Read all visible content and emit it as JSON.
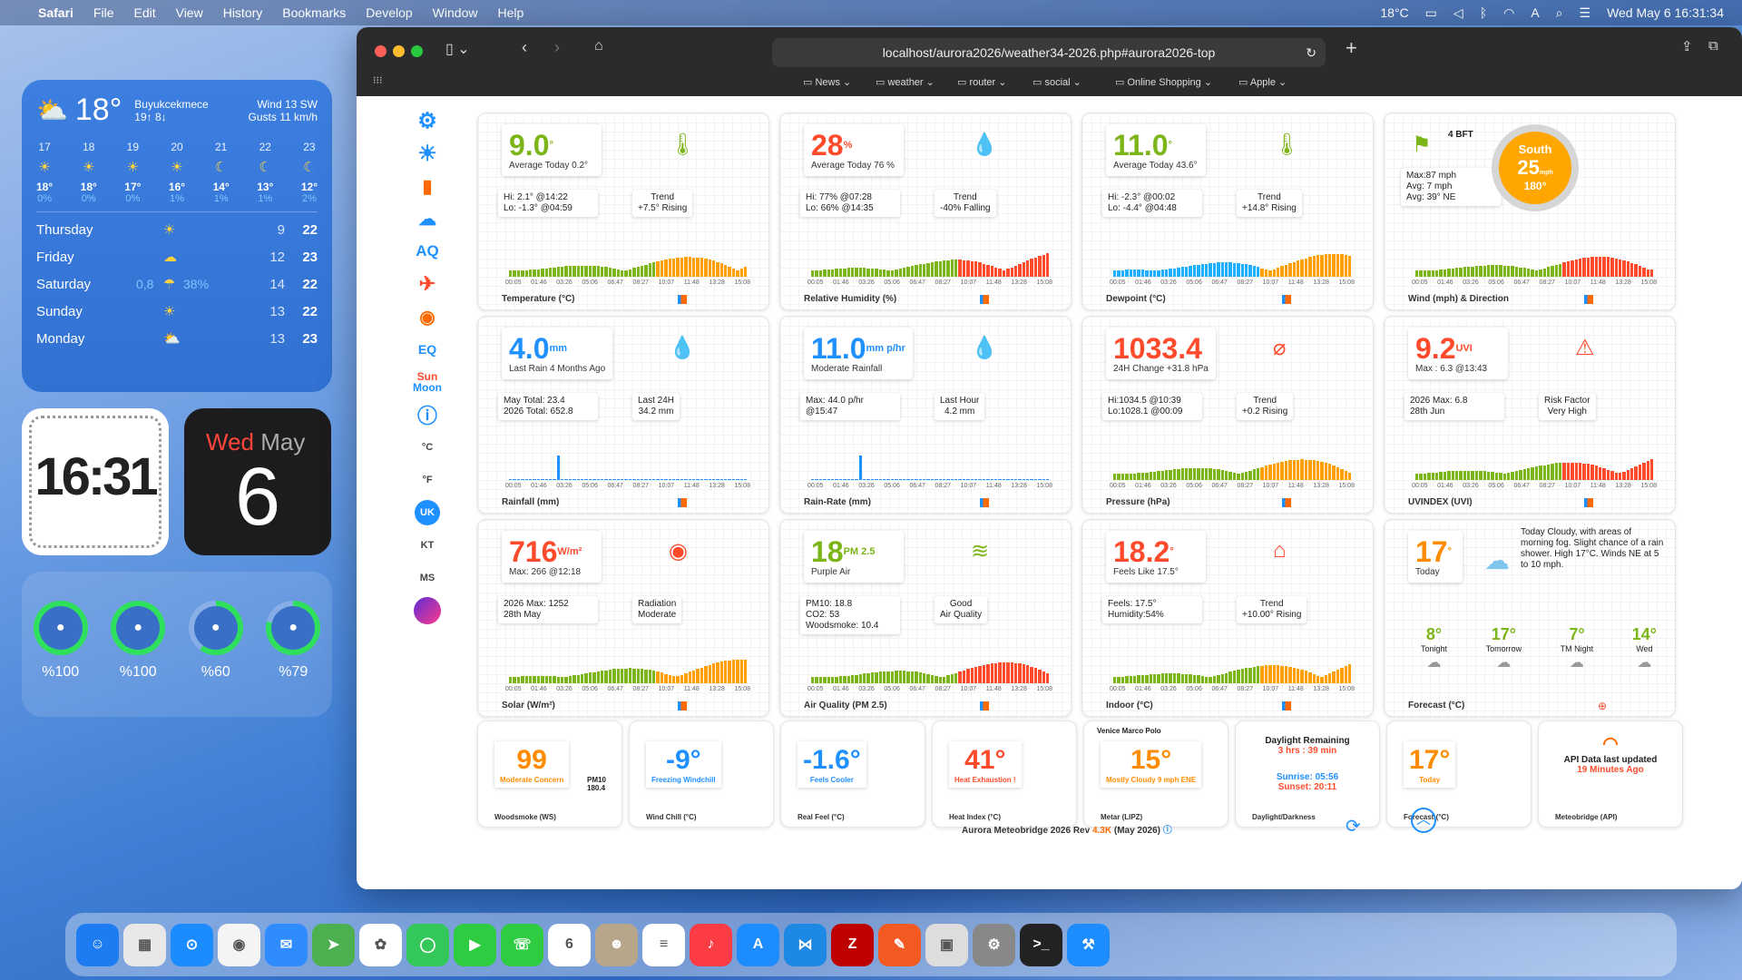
{
  "menubar": {
    "app": "Safari",
    "menus": [
      "File",
      "Edit",
      "View",
      "History",
      "Bookmarks",
      "Develop",
      "Window",
      "Help"
    ],
    "temp": "18°C",
    "datetime": "Wed May 6  16:31:34"
  },
  "weather_widget": {
    "temp": "18°",
    "location": "Buyukcekmece",
    "hilo": "19↑ 8↓",
    "wind": "Wind 13 SW",
    "gusts": "Gusts 11 km/h",
    "hours": [
      {
        "h": "17",
        "t": "18°",
        "p": "0%",
        "i": "☀"
      },
      {
        "h": "18",
        "t": "18°",
        "p": "0%",
        "i": "☀"
      },
      {
        "h": "19",
        "t": "17°",
        "p": "0%",
        "i": "☀"
      },
      {
        "h": "20",
        "t": "16°",
        "p": "1%",
        "i": "☀"
      },
      {
        "h": "21",
        "t": "14°",
        "p": "1%",
        "i": "☾"
      },
      {
        "h": "22",
        "t": "13°",
        "p": "1%",
        "i": "☾"
      },
      {
        "h": "23",
        "t": "12°",
        "p": "2%",
        "i": "☾"
      }
    ],
    "days": [
      {
        "d": "Thursday",
        "r": "",
        "p": "",
        "i": "☀",
        "lo": "9",
        "hi": "22"
      },
      {
        "d": "Friday",
        "r": "",
        "p": "",
        "i": "☁",
        "lo": "12",
        "hi": "23"
      },
      {
        "d": "Saturday",
        "r": "0,8",
        "p": "38%",
        "i": "☂",
        "lo": "14",
        "hi": "22"
      },
      {
        "d": "Sunday",
        "r": "",
        "p": "",
        "i": "☀",
        "lo": "13",
        "hi": "22"
      },
      {
        "d": "Monday",
        "r": "",
        "p": "",
        "i": "⛅",
        "lo": "13",
        "hi": "23"
      }
    ]
  },
  "clock_widget": {
    "time": "16:31"
  },
  "calendar_widget": {
    "dow": "Wed",
    "month": "May",
    "day": "6"
  },
  "battery_widget": {
    "items": [
      {
        "name": "airpods-icon",
        "pct": "%100",
        "level": 1.0
      },
      {
        "name": "case-icon",
        "pct": "%100",
        "level": 1.0
      },
      {
        "name": "keyboard-icon",
        "pct": "%60",
        "level": 0.6
      },
      {
        "name": "mouse-icon",
        "pct": "%79",
        "level": 0.79
      }
    ]
  },
  "browser": {
    "url": "localhost/aurora2026/weather34-2026.php#aurora2026-top",
    "bookmarks": [
      "News",
      "weather",
      "router",
      "social",
      "Online Shopping",
      "Apple"
    ]
  },
  "sidebar": {
    "aq": "AQ",
    "eq": "EQ",
    "sun": "Sun",
    "moon": "Moon",
    "c": "°C",
    "f": "°F",
    "uk": "UK",
    "kt": "KT",
    "ms": "MS"
  },
  "cards": [
    {
      "val": "9.0",
      "unit": "°",
      "sub": "Average Today 0.2°",
      "l1": "Hi: 2.1° @14:22",
      "l2": "Lo: -1.3° @04:59",
      "r1": "Trend",
      "r2": "+7.5° Rising",
      "title": "Temperature (°C)",
      "color": "#7cb518"
    },
    {
      "val": "28",
      "unit": "%",
      "sub": "Average Today 76 %",
      "l1": "Hi: 77% @07:28",
      "l2": "Lo: 66% @14:35",
      "r1": "Trend",
      "r2": "-40% Falling",
      "title": "Relative Humidity (%)",
      "color": "#ff4b2b"
    },
    {
      "val": "11.0",
      "unit": "°",
      "sub": "Average Today 43.6°",
      "l1": "Hi: -2.3° @00:02",
      "l2": "Lo: -4.4° @04:48",
      "r1": "Trend",
      "r2": "+14.8° Rising",
      "title": "Dewpoint (°C)",
      "color": "#7cb518"
    },
    {
      "val": "25",
      "unit": "mph",
      "sub": "",
      "l1": "Max:87 mph",
      "l2": "Avg: 7 mph",
      "l3": "Avg: 39° NE",
      "r1": "South",
      "r2": "180°",
      "title": "Wind (mph) & Direction",
      "color": "#7cb518",
      "bft": "4 BFT"
    },
    {
      "val": "4.0",
      "unit": "mm",
      "sub": "Last Rain 4 Months Ago",
      "l1": "May Total: 23.4",
      "l2": "2026 Total: 652.8",
      "r1": "Last 24H",
      "r2": "34.2 mm",
      "title": "Rainfall (mm)",
      "color": "#1e90ff"
    },
    {
      "val": "11.0",
      "unit": "mm p/hr",
      "sub": "Moderate Rainfall",
      "l1": "Max: 44.0 p/hr",
      "l2": "@15:47",
      "r1": "Last Hour",
      "r2": "4.2 mm",
      "title": "Rain-Rate (mm)",
      "color": "#1e90ff"
    },
    {
      "val": "1033.4",
      "unit": "",
      "sub": "24H Change +31.8 hPa",
      "l1": "Hi:1034.5 @10:39",
      "l2": "Lo:1028.1 @00:09",
      "r1": "Trend",
      "r2": "+0.2 Rising",
      "title": "Pressure (hPa)",
      "color": "#ff4b2b"
    },
    {
      "val": "9.2",
      "unit": "UVI",
      "sub": "Max : 6.3 @13:43",
      "l1": "2026 Max: 6.8",
      "l2": "28th Jun",
      "r1": "Risk Factor",
      "r2": "Very High",
      "title": "UVINDEX (UVI)",
      "color": "#ff4b2b"
    },
    {
      "val": "716",
      "unit": "W/m²",
      "sub": "Max: 266 @12:18",
      "l1": "2026 Max: 1252",
      "l2": "28th May",
      "r1": "Radiation",
      "r2": "Moderate",
      "title": "Solar (W/m²)",
      "color": "#ff4b2b"
    },
    {
      "val": "18",
      "unit": "PM 2.5",
      "sub": "Purple Air",
      "l1": "PM10: 18.8",
      "l2": "CO2: 53",
      "l3": "Woodsmoke: 10.4",
      "r1": "Good",
      "r2": "Air Quality",
      "title": "Air Quality (PM 2.5)",
      "color": "#7cb518"
    },
    {
      "val": "18.2",
      "unit": "°",
      "sub": "Feels Like 17.5°",
      "l1": "Feels: 17.5°",
      "l2": "Humidity:54%",
      "r1": "Trend",
      "r2": "+10.00° Rising",
      "title": "Indoor (°C)",
      "color": "#ff4b2b"
    },
    {
      "val": "17",
      "unit": "°",
      "sub": "Today",
      "desc": "Today Cloudy, with areas of morning fog. Slight chance of a rain shower. High 17°C. Winds NE at 5 to 10 mph.",
      "title": "Forecast (°C)",
      "color": "#ff8c00",
      "fc": [
        {
          "t": "8°",
          "d": "Tonight"
        },
        {
          "t": "17°",
          "d": "Tomorrow"
        },
        {
          "t": "7°",
          "d": "TM Night"
        },
        {
          "t": "14°",
          "d": "Wed"
        }
      ]
    }
  ],
  "axis_labels": [
    "00:05",
    "01:46",
    "03:26",
    "05:06",
    "06:47",
    "08:27",
    "10:07",
    "11:48",
    "13:28",
    "15:08"
  ],
  "small": [
    {
      "val": "99",
      "sub": "Moderate Concern",
      "extra": "PM10 180.4",
      "title": "Woodsmoke (WS)",
      "color": "#ff8c00"
    },
    {
      "val": "-9°",
      "sub": "Freezing Windchill",
      "title": "Wind Chill (°C)",
      "color": "#1e90ff"
    },
    {
      "val": "-1.6°",
      "sub": "Feels Cooler",
      "title": "Real Feel (°C)",
      "color": "#1e90ff"
    },
    {
      "val": "41°",
      "sub": "Heat Exhaustion !",
      "title": "Heat Index (°C)",
      "color": "#ff4b2b"
    },
    {
      "val": "15°",
      "top": "Venice Marco Polo",
      "sub": "Mostly Cloudy 9 mph ENE",
      "title": "Metar (LIPZ)",
      "color": "#ff8c00"
    },
    {
      "val": "Daylight Remaining",
      "sub": "3 hrs : 39 min",
      "sr": "Sunrise: 05:56",
      "ss": "Sunset: 20:11",
      "title": "Daylight/Darkness",
      "color": "#333"
    },
    {
      "val": "17°",
      "sub": "Today",
      "title": "Forecast (°C)",
      "color": "#ff8c00"
    },
    {
      "val": "API Data last updated",
      "sub": "19 Minutes Ago",
      "title": "Meteobridge (API)",
      "color": "#333"
    }
  ],
  "footer": {
    "text": "Aurora Meteobridge 2026 Rev",
    "rev": "4.3K",
    "date": "(May 2026)"
  }
}
